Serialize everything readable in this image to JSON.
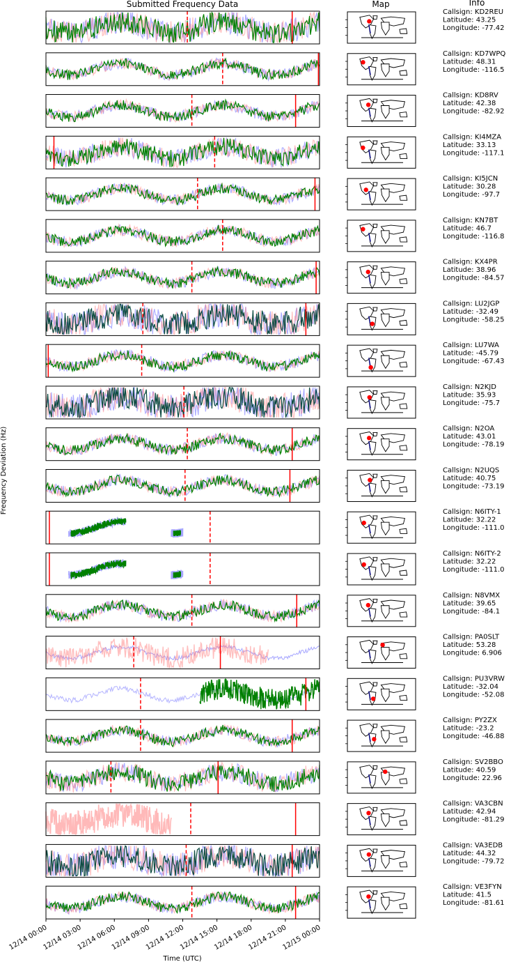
{
  "figure": {
    "panel_title": "Submitted Frequency Data",
    "map_title": "Map",
    "info_title": "Info",
    "ylabel": "Frequency Deviation (Hz)",
    "xlabel": "Time (UTC)",
    "x_ticks": [
      "12/14 00:00",
      "12/14 03:00",
      "12/14 06:00",
      "12/14 09:00",
      "12/14 12:00",
      "12/14 15:00",
      "12/14 18:00",
      "12/14 21:00",
      "12/15 00:00"
    ]
  },
  "colors": {
    "blue": "#6a6aff",
    "pink": "#ff8080",
    "green": "#008000",
    "dark": "#0a4a40",
    "red": "#ff0000",
    "navy": "#00007f"
  },
  "chart_data": {
    "type": "line",
    "x_range": [
      "12/14 00:00",
      "12/15 00:00"
    ],
    "series_colors": [
      "blue",
      "pink",
      "green"
    ],
    "stations": [
      {
        "callsign": "KD2REU",
        "lat": 43.25,
        "lon": -77.42,
        "info": [
          "Callsign: KD2REU",
          "Latitude: 43.25",
          "Longitude: -77.42"
        ],
        "dashed_hour": 12.4,
        "solid_hours": [
          21.6
        ],
        "style": "busy"
      },
      {
        "callsign": "KD7WPQ",
        "lat": 48.31,
        "lon": -116.5,
        "info": [
          "Callsign: KD7WPQ",
          "Latitude: 48.31",
          "Longitude: -116.5"
        ],
        "dashed_hour": 15.5,
        "solid_hours": [
          23.9
        ],
        "style": "band"
      },
      {
        "callsign": "KD8RV",
        "lat": 42.38,
        "lon": -82.92,
        "info": [
          "Callsign: KD8RV",
          "Latitude: 42.38",
          "Longitude: -82.92"
        ],
        "dashed_hour": 12.8,
        "solid_hours": [
          21.9
        ],
        "style": "flat"
      },
      {
        "callsign": "KI4MZA",
        "lat": 33.13,
        "lon": -117.1,
        "info": [
          "Callsign: KI4MZA",
          "Latitude: 33.13",
          "Longitude: -117.1"
        ],
        "dashed_hour": 14.8,
        "solid_hours": [
          0.7
        ],
        "style": "block"
      },
      {
        "callsign": "KI5JCN",
        "lat": 30.28,
        "lon": -97.7,
        "info": [
          "Callsign: KI5JCN",
          "Latitude: 30.28",
          "Longitude: -97.7"
        ],
        "dashed_hour": 13.3,
        "solid_hours": [
          23.6
        ],
        "style": "rise"
      },
      {
        "callsign": "KN7BT",
        "lat": 46.7,
        "lon": -116.8,
        "info": [
          "Callsign: KN7BT",
          "Latitude: 46.7",
          "Longitude: -116.8"
        ],
        "dashed_hour": 15.5,
        "solid_hours": [],
        "style": "wave"
      },
      {
        "callsign": "KX4PR",
        "lat": 38.96,
        "lon": -84.57,
        "info": [
          "Callsign: KX4PR",
          "Latitude: 38.96",
          "Longitude: -84.57"
        ],
        "dashed_hour": 12.8,
        "solid_hours": [
          23.7
        ],
        "style": "flat"
      },
      {
        "callsign": "LU2JGP",
        "lat": -32.49,
        "lon": -58.25,
        "info": [
          "Callsign: LU2JGP",
          "Latitude: -32.49",
          "Longitude: -58.25"
        ],
        "dashed_hour": 8.5,
        "solid_hours": [
          22.8
        ],
        "style": "dense"
      },
      {
        "callsign": "LU7WA",
        "lat": -45.79,
        "lon": -67.43,
        "info": [
          "Callsign: LU7WA",
          "Latitude: -45.79",
          "Longitude: -67.43"
        ],
        "dashed_hour": 8.4,
        "solid_hours": [
          0.2
        ],
        "style": "flat"
      },
      {
        "callsign": "N2KJD",
        "lat": 35.93,
        "lon": -75.7,
        "info": [
          "Callsign: N2KJD",
          "Latitude: 35.93",
          "Longitude: -75.7"
        ],
        "dashed_hour": 12.1,
        "solid_hours": [],
        "style": "dense"
      },
      {
        "callsign": "N2OA",
        "lat": 43.01,
        "lon": -78.19,
        "info": [
          "Callsign: N2OA",
          "Latitude: 43.01",
          "Longitude: -78.19"
        ],
        "dashed_hour": 12.4,
        "solid_hours": [
          21.6
        ],
        "style": "dip"
      },
      {
        "callsign": "N2UQS",
        "lat": 40.75,
        "lon": -73.19,
        "info": [
          "Callsign: N2UQS",
          "Latitude: 40.75",
          "Longitude: -73.19"
        ],
        "dashed_hour": 12.2,
        "solid_hours": [
          21.4
        ],
        "style": "dip"
      },
      {
        "callsign": "N6ITY-1",
        "lat": 32.22,
        "lon": -111.0,
        "info": [
          "Callsign: N6ITY-1",
          "Latitude: 32.22",
          "Longitude: -111.0"
        ],
        "dashed_hour": 14.4,
        "solid_hours": [
          0.3
        ],
        "style": "sparse"
      },
      {
        "callsign": "N6ITY-2",
        "lat": 32.22,
        "lon": -111.0,
        "info": [
          "Callsign: N6ITY-2",
          "Latitude: 32.22",
          "Longitude: -111.0"
        ],
        "dashed_hour": 14.4,
        "solid_hours": [
          0.3
        ],
        "style": "sparse"
      },
      {
        "callsign": "N8VMX",
        "lat": 39.65,
        "lon": -84.1,
        "info": [
          "Callsign: N8VMX",
          "Latitude: 39.65",
          "Longitude: -84.1"
        ],
        "dashed_hour": 12.8,
        "solid_hours": [
          22.0
        ],
        "style": "flat"
      },
      {
        "callsign": "PA0SLT",
        "lat": 53.28,
        "lon": 6.906,
        "info": [
          "Callsign: PA0SLT",
          "Latitude: 53.28",
          "Longitude: 6.906"
        ],
        "dashed_hour": 7.7,
        "solid_hours": [
          15.3
        ],
        "style": "pinkblock"
      },
      {
        "callsign": "PU3VRW",
        "lat": -32.04,
        "lon": -52.08,
        "info": [
          "Callsign: PU3VRW",
          "Latitude: -32.04",
          "Longitude: -52.08"
        ],
        "dashed_hour": 8.3,
        "solid_hours": [
          22.8
        ],
        "style": "late"
      },
      {
        "callsign": "PY2ZX",
        "lat": -23.2,
        "lon": -46.88,
        "info": [
          "Callsign: PY2ZX",
          "Latitude: -23.2",
          "Longitude: -46.88"
        ],
        "dashed_hour": 8.3,
        "solid_hours": [
          21.6
        ],
        "style": "rise"
      },
      {
        "callsign": "SV2BBO",
        "lat": 40.59,
        "lon": 22.96,
        "info": [
          "Callsign: SV2BBO",
          "Latitude: 40.59",
          "Longitude: 22.96"
        ],
        "dashed_hour": 5.7,
        "solid_hours": [
          15.1
        ],
        "style": "block"
      },
      {
        "callsign": "VA3CBN",
        "lat": 42.94,
        "lon": -81.29,
        "info": [
          "Callsign: VA3CBN",
          "Latitude: 42.94",
          "Longitude: -81.29"
        ],
        "dashed_hour": 12.7,
        "solid_hours": [
          21.9
        ],
        "style": "pinkonly"
      },
      {
        "callsign": "VA3EDB",
        "lat": 44.32,
        "lon": -79.72,
        "info": [
          "Callsign: VA3EDB",
          "Latitude: 44.32",
          "Longitude: -79.72"
        ],
        "dashed_hour": 12.3,
        "solid_hours": [
          21.6
        ],
        "style": "dense"
      },
      {
        "callsign": "VE3FYN",
        "lat": 41.5,
        "lon": -81.61,
        "info": [
          "Callsign: VE3FYN",
          "Latitude: 41.5",
          "Longitude: -81.61"
        ],
        "dashed_hour": 12.8,
        "solid_hours": [
          21.9
        ],
        "style": "flat"
      }
    ]
  }
}
